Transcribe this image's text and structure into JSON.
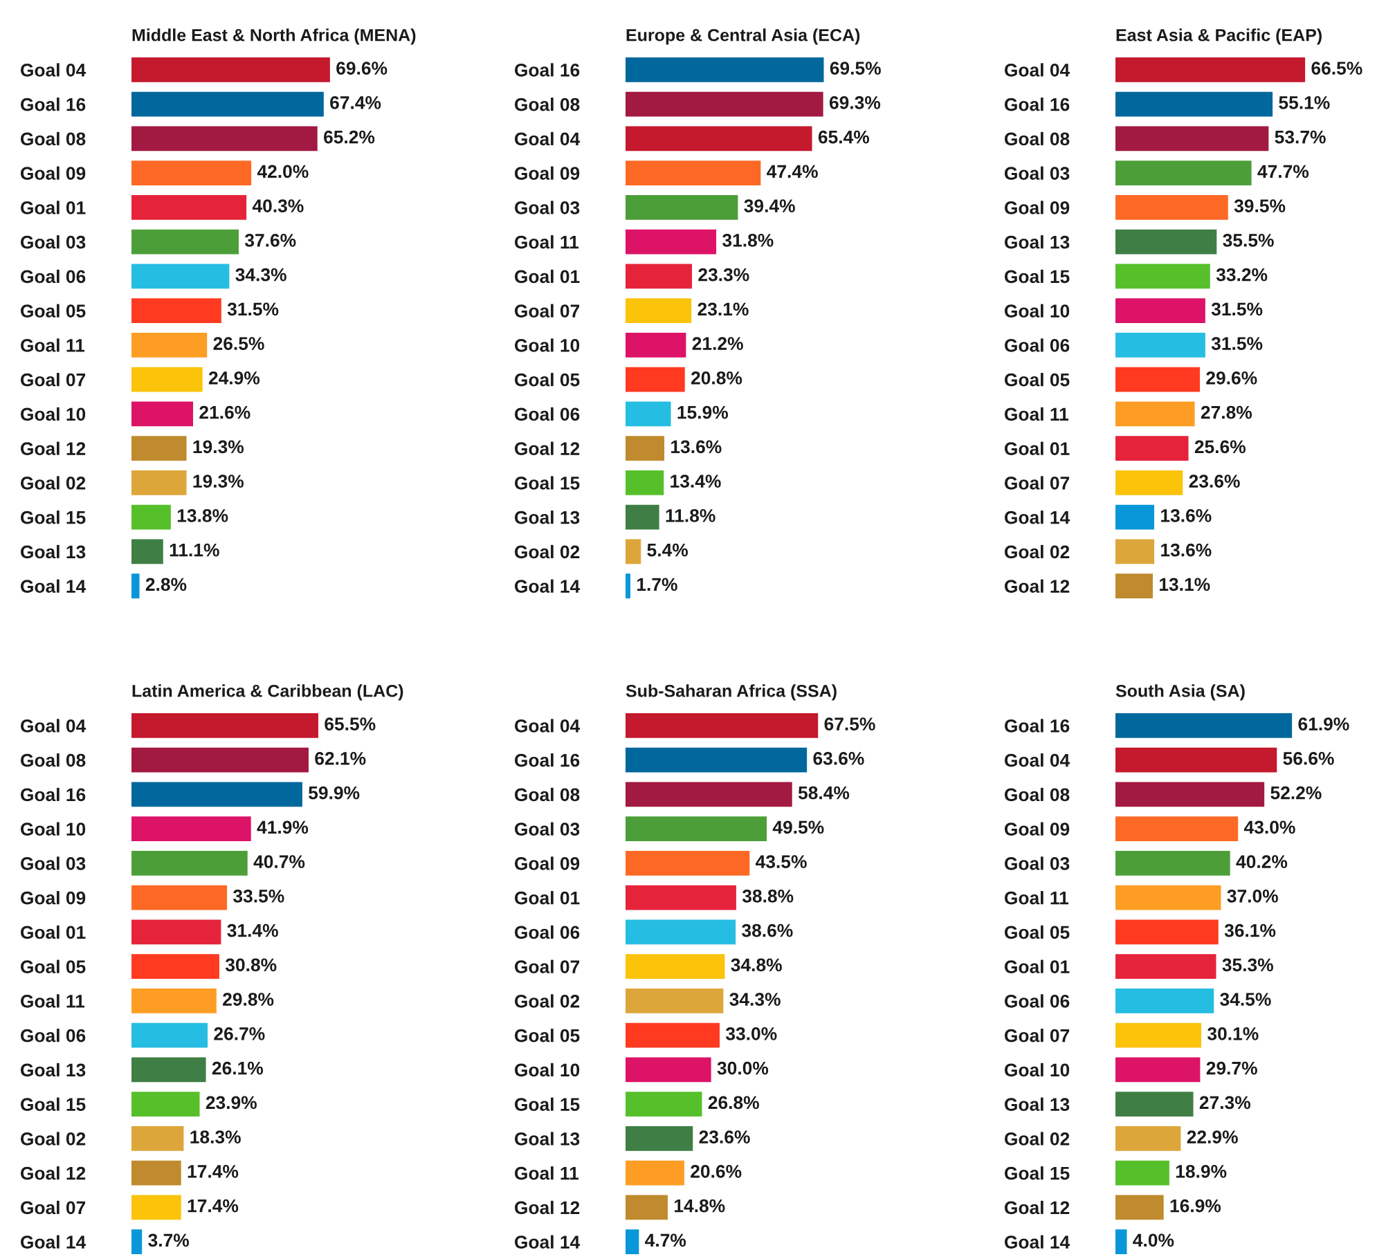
{
  "chart_data": [
    {
      "type": "bar",
      "orientation": "horizontal",
      "title": "Middle East & North Africa (MENA)",
      "data_labels": true,
      "categories": [
        "Goal 04",
        "Goal 16",
        "Goal 08",
        "Goal 09",
        "Goal 01",
        "Goal 03",
        "Goal 06",
        "Goal 05",
        "Goal 11",
        "Goal 07",
        "Goal 10",
        "Goal 12",
        "Goal 02",
        "Goal 15",
        "Goal 13",
        "Goal 14"
      ],
      "values": [
        69.6,
        67.4,
        65.2,
        42.0,
        40.3,
        37.6,
        34.3,
        31.5,
        26.5,
        24.9,
        21.6,
        19.3,
        19.3,
        13.8,
        11.1,
        2.8
      ],
      "value_labels": [
        "69.6%",
        "67.4%",
        "65.2%",
        "42.0%",
        "40.3%",
        "37.6%",
        "34.3%",
        "31.5%",
        "26.5%",
        "24.9%",
        "21.6%",
        "19.3%",
        "19.3%",
        "13.8%",
        "11.1%",
        "2.8%"
      ],
      "colors": [
        "#c5192d",
        "#00689d",
        "#a21942",
        "#fd6925",
        "#e5243b",
        "#4c9f38",
        "#26bde2",
        "#ff3a21",
        "#fd9d24",
        "#fcc30b",
        "#dd1367",
        "#bf8b2e",
        "#dda63a",
        "#56c02b",
        "#3f7e44",
        "#0a97d9"
      ]
    },
    {
      "type": "bar",
      "orientation": "horizontal",
      "title": "Europe & Central Asia (ECA)",
      "data_labels": true,
      "categories": [
        "Goal 16",
        "Goal 08",
        "Goal 04",
        "Goal 09",
        "Goal 03",
        "Goal 11",
        "Goal 01",
        "Goal 07",
        "Goal 10",
        "Goal 05",
        "Goal 06",
        "Goal 12",
        "Goal 15",
        "Goal 13",
        "Goal 02",
        "Goal 14"
      ],
      "values": [
        69.5,
        69.3,
        65.4,
        47.4,
        39.4,
        31.8,
        23.3,
        23.1,
        21.2,
        20.8,
        15.9,
        13.6,
        13.4,
        11.8,
        5.4,
        1.7
      ],
      "value_labels": [
        "69.5%",
        "69.3%",
        "65.4%",
        "47.4%",
        "39.4%",
        "31.8%",
        "23.3%",
        "23.1%",
        "21.2%",
        "20.8%",
        "15.9%",
        "13.6%",
        "13.4%",
        "11.8%",
        "5.4%",
        "1.7%"
      ],
      "colors": [
        "#00689d",
        "#a21942",
        "#c5192d",
        "#fd6925",
        "#4c9f38",
        "#dd1367",
        "#e5243b",
        "#fcc30b",
        "#dd1367",
        "#ff3a21",
        "#26bde2",
        "#bf8b2e",
        "#56c02b",
        "#3f7e44",
        "#dda63a",
        "#0a97d9"
      ]
    },
    {
      "type": "bar",
      "orientation": "horizontal",
      "title": "East Asia & Pacific (EAP)",
      "data_labels": true,
      "categories": [
        "Goal 04",
        "Goal 16",
        "Goal 08",
        "Goal 03",
        "Goal 09",
        "Goal 13",
        "Goal 15",
        "Goal 10",
        "Goal 06",
        "Goal 05",
        "Goal 11",
        "Goal 01",
        "Goal 07",
        "Goal 14",
        "Goal 02",
        "Goal 12"
      ],
      "values": [
        66.5,
        55.1,
        53.7,
        47.7,
        39.5,
        35.5,
        33.2,
        31.5,
        31.5,
        29.6,
        27.8,
        25.6,
        23.6,
        13.6,
        13.6,
        13.1
      ],
      "value_labels": [
        "66.5%",
        "55.1%",
        "53.7%",
        "47.7%",
        "39.5%",
        "35.5%",
        "33.2%",
        "31.5%",
        "31.5%",
        "29.6%",
        "27.8%",
        "25.6%",
        "23.6%",
        "13.6%",
        "13.6%",
        "13.1%"
      ],
      "colors": [
        "#c5192d",
        "#00689d",
        "#a21942",
        "#4c9f38",
        "#fd6925",
        "#3f7e44",
        "#56c02b",
        "#dd1367",
        "#26bde2",
        "#ff3a21",
        "#fd9d24",
        "#e5243b",
        "#fcc30b",
        "#0a97d9",
        "#dda63a",
        "#bf8b2e"
      ]
    },
    {
      "type": "bar",
      "orientation": "horizontal",
      "title": "Latin America & Caribbean (LAC)",
      "data_labels": true,
      "categories": [
        "Goal 04",
        "Goal 08",
        "Goal 16",
        "Goal 10",
        "Goal 03",
        "Goal 09",
        "Goal 01",
        "Goal 05",
        "Goal 11",
        "Goal 06",
        "Goal 13",
        "Goal 15",
        "Goal 02",
        "Goal 12",
        "Goal 07",
        "Goal 14"
      ],
      "values": [
        65.5,
        62.1,
        59.9,
        41.9,
        40.7,
        33.5,
        31.4,
        30.8,
        29.8,
        26.7,
        26.1,
        23.9,
        18.3,
        17.4,
        17.4,
        3.7
      ],
      "value_labels": [
        "65.5%",
        "62.1%",
        "59.9%",
        "41.9%",
        "40.7%",
        "33.5%",
        "31.4%",
        "30.8%",
        "29.8%",
        "26.7%",
        "26.1%",
        "23.9%",
        "18.3%",
        "17.4%",
        "17.4%",
        "3.7%"
      ],
      "colors": [
        "#c5192d",
        "#a21942",
        "#00689d",
        "#dd1367",
        "#4c9f38",
        "#fd6925",
        "#e5243b",
        "#ff3a21",
        "#fd9d24",
        "#26bde2",
        "#3f7e44",
        "#56c02b",
        "#dda63a",
        "#bf8b2e",
        "#fcc30b",
        "#0a97d9"
      ]
    },
    {
      "type": "bar",
      "orientation": "horizontal",
      "title": "Sub-Saharan Africa (SSA)",
      "data_labels": true,
      "categories": [
        "Goal 04",
        "Goal 16",
        "Goal 08",
        "Goal 03",
        "Goal 09",
        "Goal 01",
        "Goal 06",
        "Goal 07",
        "Goal 02",
        "Goal 05",
        "Goal 10",
        "Goal 15",
        "Goal 13",
        "Goal 11",
        "Goal 12",
        "Goal 14"
      ],
      "values": [
        67.5,
        63.6,
        58.4,
        49.5,
        43.5,
        38.8,
        38.6,
        34.8,
        34.3,
        33.0,
        30.0,
        26.8,
        23.6,
        20.6,
        14.8,
        4.7
      ],
      "value_labels": [
        "67.5%",
        "63.6%",
        "58.4%",
        "49.5%",
        "43.5%",
        "38.8%",
        "38.6%",
        "34.8%",
        "34.3%",
        "33.0%",
        "30.0%",
        "26.8%",
        "23.6%",
        "20.6%",
        "14.8%",
        "4.7%"
      ],
      "colors": [
        "#c5192d",
        "#00689d",
        "#a21942",
        "#4c9f38",
        "#fd6925",
        "#e5243b",
        "#26bde2",
        "#fcc30b",
        "#dda63a",
        "#ff3a21",
        "#dd1367",
        "#56c02b",
        "#3f7e44",
        "#fd9d24",
        "#bf8b2e",
        "#0a97d9"
      ]
    },
    {
      "type": "bar",
      "orientation": "horizontal",
      "title": "South Asia (SA)",
      "data_labels": true,
      "categories": [
        "Goal 16",
        "Goal 04",
        "Goal 08",
        "Goal 09",
        "Goal 03",
        "Goal 11",
        "Goal 05",
        "Goal 01",
        "Goal 06",
        "Goal 07",
        "Goal 10",
        "Goal 13",
        "Goal 02",
        "Goal 15",
        "Goal 12",
        "Goal 14"
      ],
      "values": [
        61.9,
        56.6,
        52.2,
        43.0,
        40.2,
        37.0,
        36.1,
        35.3,
        34.5,
        30.1,
        29.7,
        27.3,
        22.9,
        18.9,
        16.9,
        4.0
      ],
      "value_labels": [
        "61.9%",
        "56.6%",
        "52.2%",
        "43.0%",
        "40.2%",
        "37.0%",
        "36.1%",
        "35.3%",
        "34.5%",
        "30.1%",
        "29.7%",
        "27.3%",
        "22.9%",
        "18.9%",
        "16.9%",
        "4.0%"
      ],
      "colors": [
        "#00689d",
        "#c5192d",
        "#a21942",
        "#fd6925",
        "#4c9f38",
        "#fd9d24",
        "#ff3a21",
        "#e5243b",
        "#26bde2",
        "#fcc30b",
        "#dd1367",
        "#3f7e44",
        "#dda63a",
        "#56c02b",
        "#bf8b2e",
        "#0a97d9"
      ]
    }
  ]
}
